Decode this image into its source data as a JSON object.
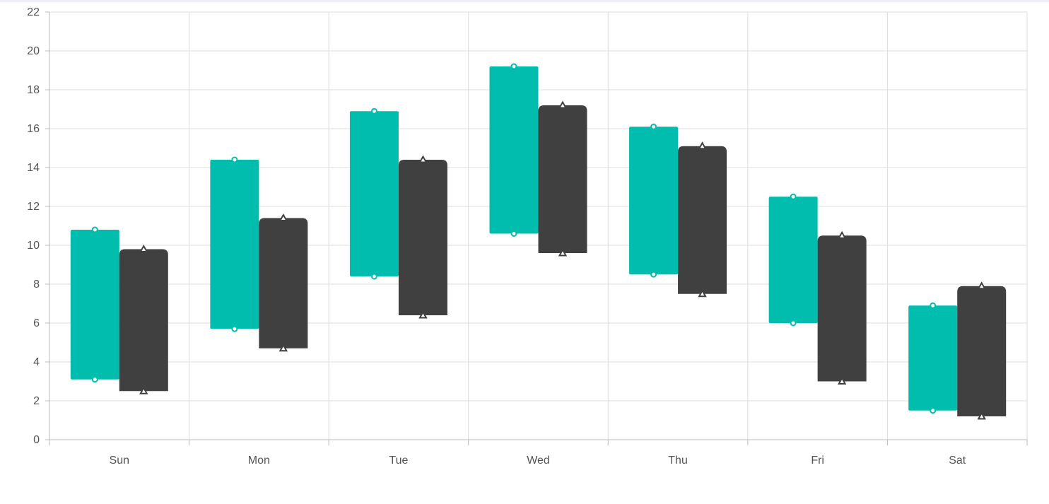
{
  "chart_data": {
    "type": "range-column",
    "categories": [
      "Sun",
      "Mon",
      "Tue",
      "Wed",
      "Thu",
      "Fri",
      "Sat"
    ],
    "series": [
      {
        "color": "#00bdae",
        "marker": "circle",
        "low": [
          3.1,
          5.7,
          8.4,
          10.6,
          8.5,
          6.0,
          1.5
        ],
        "high": [
          10.8,
          14.4,
          16.9,
          19.2,
          16.1,
          12.5,
          6.9
        ]
      },
      {
        "color": "#404041",
        "marker": "triangle",
        "low": [
          2.5,
          4.7,
          6.4,
          9.6,
          7.5,
          3.0,
          1.2
        ],
        "high": [
          9.8,
          11.4,
          14.4,
          17.2,
          15.1,
          10.5,
          7.9
        ]
      }
    ],
    "yticks": [
      "0",
      "2",
      "4",
      "6",
      "8",
      "10",
      "12",
      "14",
      "16",
      "18",
      "20",
      "22"
    ],
    "ylim": [
      0,
      22
    ],
    "grid": true,
    "legend": "none"
  }
}
